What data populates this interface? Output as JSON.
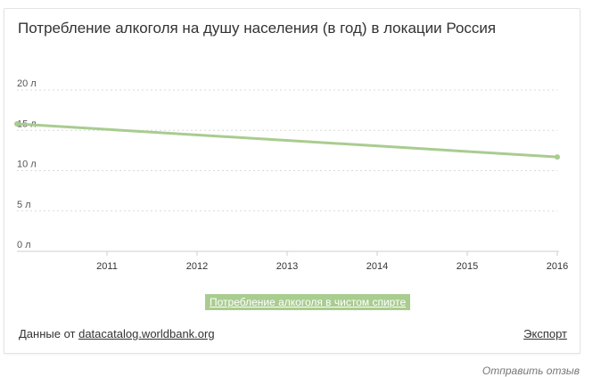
{
  "card": {
    "title": "Потребление алкоголя на душу населения (в год) в локации Россия",
    "legend_label": "Потребление алкоголя в чистом спирте",
    "source_prefix": "Данные от ",
    "source_link": "datacatalog.worldbank.org",
    "export_label": "Экспорт"
  },
  "feedback_label": "Отправить отзыв",
  "colors": {
    "line": "#a9cc8f",
    "legend_bg": "#a9cc8f",
    "grid": "#d9d9d9"
  },
  "chart_data": {
    "type": "line",
    "title": "Потребление алкоголя на душу населения (в год) в локации Россия",
    "xlabel": "",
    "ylabel": "",
    "x_ticks": [
      "2011",
      "2012",
      "2013",
      "2014",
      "2015",
      "2016"
    ],
    "y_ticks": [
      "0 л",
      "5 л",
      "10 л",
      "15 л",
      "20 л"
    ],
    "xlim": [
      2010,
      2016
    ],
    "ylim": [
      0,
      20
    ],
    "grid": true,
    "series": [
      {
        "name": "Потребление алкоголя в чистом спирте",
        "x": [
          2010,
          2016
        ],
        "values": [
          15.8,
          11.7
        ]
      }
    ]
  }
}
